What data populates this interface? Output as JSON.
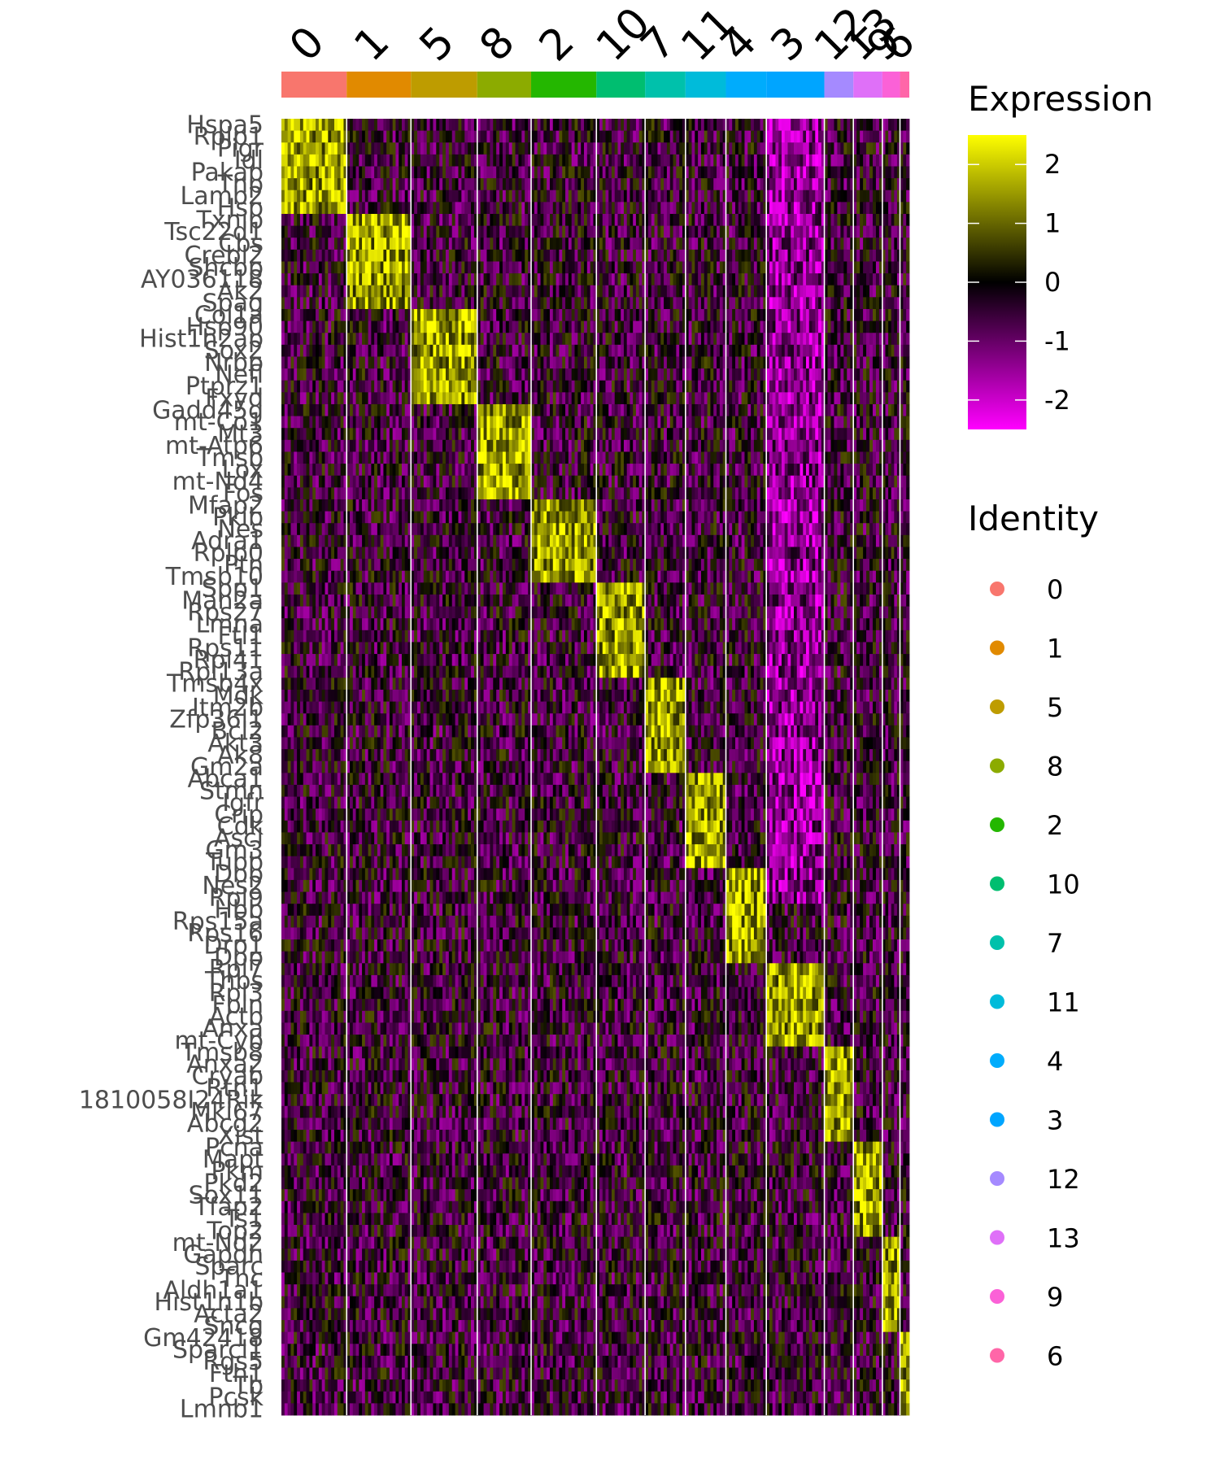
{
  "chart_data": {
    "type": "heatmap",
    "clusters": [
      "0",
      "1",
      "5",
      "8",
      "2",
      "10",
      "7",
      "11",
      "4",
      "3",
      "12",
      "13",
      "9",
      "6"
    ],
    "cluster_cells": [
      63,
      62,
      64,
      52,
      63,
      47,
      39,
      39,
      39,
      56,
      28,
      28,
      17,
      9
    ],
    "genes": [
      "Hspa5",
      "Rplp1",
      "Pigr",
      "Idl",
      "Pakap",
      "Tnp",
      "Lamb2",
      "Hsp",
      "Txnip",
      "Tsc22d1",
      "Cbs",
      "Crebl2",
      "Shcbp",
      "AY036118",
      "Ak2",
      "Spag",
      "Col1a",
      "Hsp90",
      "Hist1h2ap",
      "Sox2",
      "Nrbp",
      "Nefl",
      "Ptprz1",
      "Fxyd",
      "Gadd45g",
      "mt-Co1",
      "Mt3",
      "mt-Atp6",
      "Tmsb",
      "Lox",
      "mt-Nd4",
      "Fos",
      "Mfap2",
      "Pkib",
      "Nes",
      "Adra1",
      "Rplp0",
      "Ptn",
      "Tmsb10",
      "Spp1",
      "Man2a",
      "Rps27",
      "Lmna",
      "Ftl1",
      "Rps11",
      "Rpl41",
      "Rpl13a",
      "Tmsb4x",
      "Mdk",
      "Itm2b",
      "Zfp36l1",
      "Bcl2",
      "Akt3",
      "Ak8",
      "Gm2a",
      "Abca1",
      "Stmn",
      "Igfr",
      "Crip",
      "Cdk",
      "Ascl",
      "Gm3",
      "Tubb",
      "Dbp",
      "Nes2",
      "Rpl9",
      "Hbb",
      "Rps15a",
      "Rps16",
      "Drp1",
      "Dpp",
      "Rpl7",
      "Thbs",
      "Rpl3",
      "Fbln",
      "Actb",
      "Anxa",
      "mt-Cyb",
      "Tmsb8",
      "Anxa2",
      "Cryab",
      "Rtn1",
      "1810058I24Rik",
      "Mki67",
      "Abcg2",
      "Xist",
      "Pcna",
      "Mapt",
      "Pkm",
      "Pkd2",
      "Sox11",
      "Tfap2",
      "Ts1",
      "Top2",
      "mt-Nd2",
      "Gapdh",
      "Sparc",
      "Tnc",
      "Aldh1a1",
      "Hist1h1b",
      "Acta2",
      "Sncg",
      "Gm42418",
      "Sparcl1",
      "Rgs5",
      "Fth1",
      "Tb",
      "Pcsk",
      "Lmnb1"
    ],
    "x_axis_labels": [
      "0",
      "1",
      "5",
      "8",
      "2",
      "10",
      "7",
      "11",
      "4",
      "3",
      "12",
      "13",
      "9",
      "6"
    ],
    "colorbar": {
      "title": "Expression",
      "ticks": [
        2,
        1,
        0,
        -1,
        -2
      ],
      "range": [
        -2.5,
        2.5
      ],
      "colors": [
        "#ff00ff",
        "#000000",
        "#ffff00"
      ]
    },
    "legend": {
      "title": "Identity",
      "position": "right",
      "items": [
        {
          "label": "0",
          "color": "#f8766d"
        },
        {
          "label": "1",
          "color": "#e18a00"
        },
        {
          "label": "5",
          "color": "#be9c00"
        },
        {
          "label": "8",
          "color": "#8cab00"
        },
        {
          "label": "2",
          "color": "#24b700"
        },
        {
          "label": "10",
          "color": "#00be70"
        },
        {
          "label": "7",
          "color": "#00c1ab"
        },
        {
          "label": "11",
          "color": "#00bbda"
        },
        {
          "label": "4",
          "color": "#00acfc"
        },
        {
          "label": "3",
          "color": "#00a5ff"
        },
        {
          "label": "12",
          "color": "#a58aff"
        },
        {
          "label": "13",
          "color": "#df70f8"
        },
        {
          "label": "9",
          "color": "#fb61d7"
        },
        {
          "label": "6",
          "color": "#ff66a8"
        }
      ]
    }
  }
}
